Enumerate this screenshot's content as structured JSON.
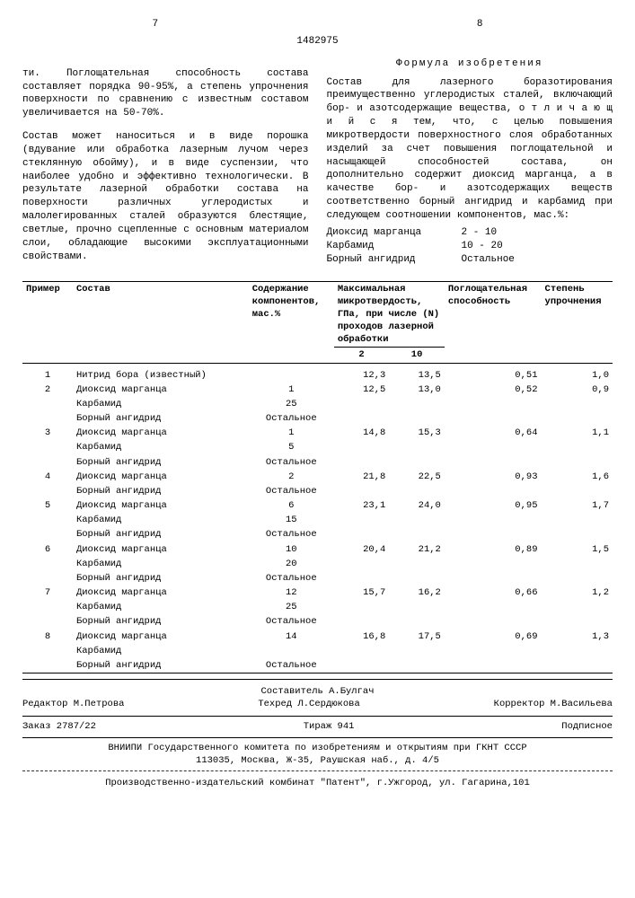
{
  "page_left": "7",
  "page_right": "8",
  "patent_number": "1482975",
  "left_col_p1": "ти. Поглощательная способность состава составляет порядка 90-95%, а степень упрочнения поверхности по сравнению с известным составом увеличивается на 50-70%.",
  "left_col_p2": "Состав может наноситься и в виде порошка (вдувание или обработка лазерным лучом через стеклянную обойму), и в виде суспензии, что наиболее удобно и эффективно технологически. В результате лазерной обработки состава на поверхности различных углеродистых и малолегированных сталей образуются блестящие, светлые, прочно сцепленные с основным материалом слои, обладающие высокими эксплуатационными свойствами.",
  "formula_title": "Формула изобретения",
  "right_col_p1": "Состав для лазерного боразотирования преимущественно углеродистых сталей, включающий бор- и азотсодержащие вещества, о т л и ч а ю щ и й с я тем, что, с целью повышения микротвердости поверхностного слоя обработанных изделий за счет повышения поглощательной и насыщающей способностей состава, он дополнительно содержит диоксид марганца, а в качестве бор- и азотсодержащих веществ соответственно борный ангидрид и карбамид при следующем соотношении компонентов, мас.%:",
  "components": [
    {
      "name": "Диоксид марганца",
      "value": "2 - 10"
    },
    {
      "name": "Карбамид",
      "value": "10 - 20"
    },
    {
      "name": "Борный ангидрид",
      "value": "Остальное"
    }
  ],
  "headers": {
    "h1": "Пример",
    "h2": "Состав",
    "h3": "Содержание компонентов, мас.%",
    "h4": "Максимальная микротвердость, ГПа, при числе (N) проходов лазерной обработки",
    "h5": "Поглощательная способность",
    "h6": "Степень упрочнения",
    "sub1": "2",
    "sub2": "10"
  },
  "rows": [
    {
      "n": "1",
      "lines": [
        {
          "c": "Нитрид бора (известный)",
          "p": "",
          "m2": "12,3",
          "m10": "13,5",
          "a": "0,51",
          "s": "1,0"
        }
      ]
    },
    {
      "n": "2",
      "lines": [
        {
          "c": "Диоксид марганца",
          "p": "1",
          "m2": "12,5",
          "m10": "13,0",
          "a": "0,52",
          "s": "0,9"
        },
        {
          "c": "Карбамид",
          "p": "25"
        },
        {
          "c": "Борный ангидрид",
          "p": "Остальное"
        }
      ]
    },
    {
      "n": "3",
      "lines": [
        {
          "c": "Диоксид марганца",
          "p": "1",
          "m2": "14,8",
          "m10": "15,3",
          "a": "0,64",
          "s": "1,1"
        },
        {
          "c": "Карбамид",
          "p": "5"
        },
        {
          "c": "Борный ангидрид",
          "p": "Остальное"
        }
      ]
    },
    {
      "n": "4",
      "lines": [
        {
          "c": "Диоксид марганца",
          "p": "2",
          "m2": "21,8",
          "m10": "22,5",
          "a": "0,93",
          "s": "1,6"
        },
        {
          "c": "Борный ангидрид",
          "p": "Остальное"
        }
      ]
    },
    {
      "n": "5",
      "lines": [
        {
          "c": "Диоксид марганца",
          "p": "6",
          "m2": "23,1",
          "m10": "24,0",
          "a": "0,95",
          "s": "1,7"
        },
        {
          "c": "Карбамид",
          "p": "15"
        },
        {
          "c": "Борный ангидрид",
          "p": "Остальное"
        }
      ]
    },
    {
      "n": "6",
      "lines": [
        {
          "c": "Диоксид марганца",
          "p": "10",
          "m2": "20,4",
          "m10": "21,2",
          "a": "0,89",
          "s": "1,5"
        },
        {
          "c": "Карбамид",
          "p": "20"
        },
        {
          "c": "Борный ангидрид",
          "p": "Остальное"
        }
      ]
    },
    {
      "n": "7",
      "lines": [
        {
          "c": "Диоксид марганца",
          "p": "12",
          "m2": "15,7",
          "m10": "16,2",
          "a": "0,66",
          "s": "1,2"
        },
        {
          "c": "Карбамид",
          "p": "25"
        },
        {
          "c": "Борный ангидрид",
          "p": "Остальное"
        }
      ]
    },
    {
      "n": "8",
      "lines": [
        {
          "c": "Диоксид марганца",
          "p": "14",
          "m2": "16,8",
          "m10": "17,5",
          "a": "0,69",
          "s": "1,3"
        },
        {
          "c": "Карбамид",
          "p": ""
        },
        {
          "c": "Борный ангидрид",
          "p": "Остальное"
        }
      ]
    }
  ],
  "editorial": {
    "editor": "Редактор М.Петрова",
    "compiler": "Составитель А.Булгач",
    "tech": "Техред Л.Сердюкова",
    "corrector": "Корректор М.Васильева"
  },
  "order": {
    "order": "Заказ 2787/22",
    "tirazh": "Тираж 941",
    "sub": "Подписное"
  },
  "footer1": "ВНИИПИ Государственного комитета по изобретениям и открытиям при ГКНТ СССР",
  "footer2": "113035, Москва, Ж-35, Раушская наб., д. 4/5",
  "footer3": "Производственно-издательский комбинат \"Патент\", г.Ужгород, ул. Гагарина,101"
}
